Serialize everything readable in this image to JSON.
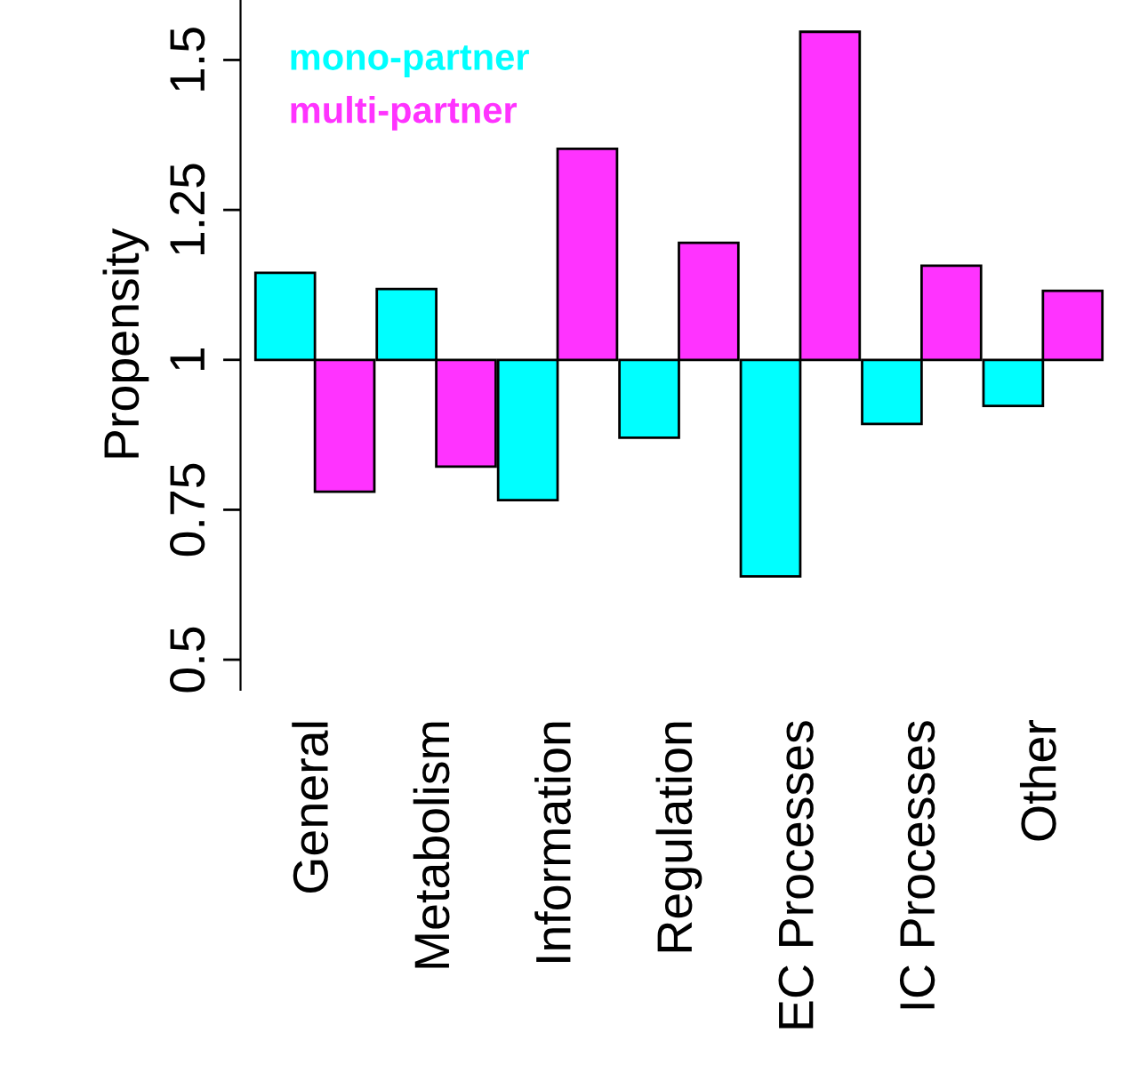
{
  "chart_data": {
    "type": "bar",
    "ylabel": "Propensity",
    "categories": [
      "General",
      "Metabolism",
      "Information",
      "Regulation",
      "EC Processes",
      "IC Processes",
      "Other"
    ],
    "series": [
      {
        "name": "mono-partner",
        "color": "#00ffff",
        "base": [
          1,
          1,
          1,
          1,
          1,
          1,
          1
        ],
        "values": [
          0.145,
          0.118,
          -0.234,
          -0.13,
          -0.361,
          -0.107,
          -0.077
        ]
      },
      {
        "name": "multi-partner",
        "color": "#ff33ff",
        "base": [
          1,
          1,
          1,
          1,
          1,
          1,
          1
        ],
        "values": [
          -0.22,
          -0.178,
          0.352,
          0.195,
          0.547,
          0.157,
          0.115
        ]
      }
    ],
    "ylim": [
      0.45,
      1.6
    ],
    "yticks": [
      0.5,
      0.75,
      1,
      1.25,
      1.5
    ],
    "grid": false,
    "legend": "top left"
  }
}
